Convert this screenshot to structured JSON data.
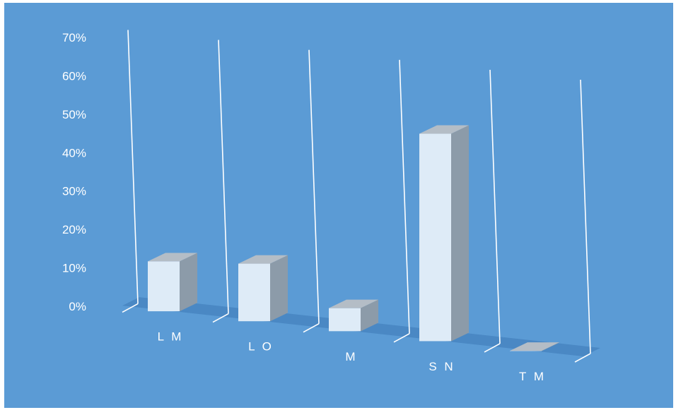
{
  "chart_data": {
    "type": "bar",
    "style": "3d-column",
    "title": "",
    "xlabel": "",
    "ylabel": "",
    "categories": [
      "LM",
      "LO",
      "M",
      "SN",
      "TM"
    ],
    "category_labels": [
      "L M",
      "L O",
      "M",
      "S N",
      "T M"
    ],
    "values": [
      13,
      15,
      6,
      54,
      0
    ],
    "value_unit": "%",
    "ylim": [
      0,
      70
    ],
    "yticks": [
      0,
      10,
      20,
      30,
      40,
      50,
      60,
      70
    ],
    "ytick_labels": [
      "0%",
      "10%",
      "20%",
      "30%",
      "40%",
      "50%",
      "60%",
      "70%"
    ],
    "grid": false,
    "legend": "none"
  },
  "colors": {
    "background": "#5B9BD5",
    "bar_front": "#DEEBF7",
    "bar_side": "#8C9BA9",
    "bar_top": "#B4BDC6",
    "floor": "#4A88C4",
    "lines": "#FFFFFF"
  }
}
